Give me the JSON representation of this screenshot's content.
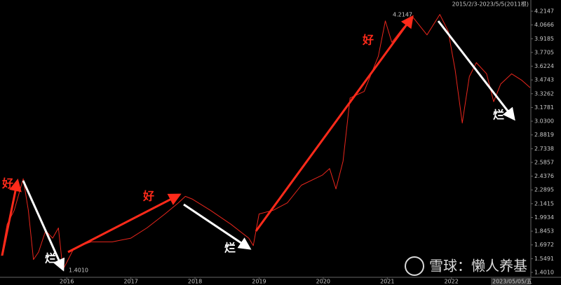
{
  "chart_data": {
    "type": "line",
    "x": [
      2014.98,
      2015.07,
      2015.18,
      2015.32,
      2015.4,
      2015.48,
      2015.56,
      2015.67,
      2015.78,
      2015.87,
      2015.94,
      2016.0,
      2016.11,
      2016.38,
      2016.71,
      2017.0,
      2017.25,
      2017.53,
      2017.74,
      2017.85,
      2017.96,
      2018.24,
      2018.56,
      2018.84,
      2018.91,
      2019.0,
      2019.22,
      2019.44,
      2019.66,
      2019.99,
      2020.1,
      2020.2,
      2020.31,
      2020.42,
      2020.64,
      2020.86,
      2020.97,
      2021.07,
      2021.24,
      2021.4,
      2021.62,
      2021.82,
      2021.95,
      2022.06,
      2022.17,
      2022.28,
      2022.39,
      2022.55,
      2022.66,
      2022.77,
      2022.94,
      2023.1,
      2023.23
    ],
    "series": [
      {
        "color": "#e8261c",
        "values": [
          1.58,
          1.92,
          2.07,
          2.41,
          2.07,
          1.54,
          1.62,
          1.85,
          1.77,
          1.88,
          1.43,
          1.51,
          1.66,
          1.73,
          1.73,
          1.77,
          1.88,
          2.03,
          2.15,
          2.22,
          2.19,
          2.07,
          1.92,
          1.77,
          1.69,
          2.03,
          2.07,
          2.15,
          2.34,
          2.45,
          2.52,
          2.3,
          2.6,
          3.28,
          3.35,
          3.73,
          4.11,
          3.88,
          4.03,
          4.15,
          3.96,
          4.18,
          4.0,
          3.58,
          3.01,
          3.51,
          3.66,
          3.54,
          3.24,
          3.43,
          3.54,
          3.47,
          3.39
        ]
      }
    ],
    "xlim": [
      2014.98,
      2023.24
    ],
    "xticks": [
      2016,
      2017,
      2018,
      2019,
      2020,
      2021,
      2022
    ],
    "ylim": [
      1.401,
      4.2147
    ],
    "yticks": [
      4.2147,
      4.0666,
      3.9185,
      3.7705,
      3.6224,
      3.4743,
      3.3262,
      3.1781,
      {
        "value": 3.03,
        "label": "3.0300"
      },
      2.8819,
      2.7338,
      2.5857,
      2.4376,
      2.2895,
      2.1415,
      1.9934,
      1.8453,
      1.6972,
      1.5491,
      {
        "value": 1.401,
        "label": "1.4010"
      }
    ],
    "grid": false,
    "annotations": {
      "range": "2015/2/3-2023/5/5(2011根)",
      "date": "2023/05/05/五",
      "high": "4.2147",
      "low": "1.4010",
      "labels": [
        "好",
        "烂",
        "好",
        "烂",
        "好",
        "烂"
      ],
      "watermark": "雪球：懒人养基"
    }
  }
}
